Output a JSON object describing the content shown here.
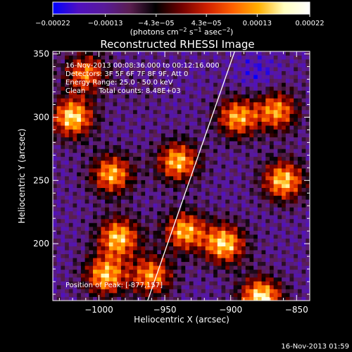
{
  "chart_data": {
    "type": "heatmap",
    "title": "Reconstructed RHESSI Image",
    "xlabel": "Heliocentric X (arcsec)",
    "ylabel": "Heliocentric Y (arcsec)",
    "xlim": [
      -1035,
      -840
    ],
    "ylim": [
      155,
      352
    ],
    "x_ticks": [
      -1000,
      -950,
      -900,
      -850
    ],
    "x_tick_labels": [
      "−1000",
      "−950",
      "−900",
      "−850"
    ],
    "y_ticks": [
      200,
      250,
      300,
      350
    ],
    "y_tick_labels": [
      "200",
      "250",
      "300",
      "350"
    ],
    "colorbar": {
      "range": [
        -0.00022,
        0.00022
      ],
      "ticks": [
        -0.00022,
        -0.00013,
        -4.3e-05,
        4.3e-05,
        0.00013,
        0.00022
      ],
      "tick_labels": [
        "−0.00022",
        "−0.00013",
        "−4.3e−05",
        "4.3e−05",
        "0.00013",
        "0.00022"
      ],
      "unit_prefix": "(photons cm",
      "unit_sup1": "−2",
      "unit_mid": " s",
      "unit_sup2": "−1",
      "unit_mid2": " asec",
      "unit_sup3": "−2",
      "unit_suffix": ")",
      "colors": [
        "#0000ff",
        "#5010c0",
        "#581a9a",
        "#5a1e50",
        "#000000",
        "#700000",
        "#d02000",
        "#ff6000",
        "#ffb000",
        "#ffffc0",
        "#ffffff"
      ]
    },
    "info_lines": [
      "16-Nov-2013 00:08:36.000 to 00:12:16.000",
      "Detectors: 3F 5F 6F 7F 8F 9F, Att 0",
      "Energy Range: 25.0 - 50.0 keV",
      "Clean      Total counts: 8.48E+03"
    ],
    "peak_label": "Position of Peak:",
    "peak_value": "[-877,157]",
    "peak": [
      -877,
      157
    ],
    "limb_line": [
      [
        -963,
        155
      ],
      [
        -897,
        352
      ]
    ],
    "intensity_hotspots": [
      {
        "x": -1020,
        "y": 300,
        "value": 0.0002
      },
      {
        "x": -990,
        "y": 255,
        "value": 0.00016
      },
      {
        "x": -985,
        "y": 205,
        "value": 0.00018
      },
      {
        "x": -995,
        "y": 175,
        "value": 0.00017
      },
      {
        "x": -940,
        "y": 265,
        "value": 0.00017
      },
      {
        "x": -935,
        "y": 210,
        "value": 0.00016
      },
      {
        "x": -905,
        "y": 200,
        "value": 0.00019
      },
      {
        "x": -895,
        "y": 300,
        "value": 0.00015
      },
      {
        "x": -860,
        "y": 250,
        "value": 0.00018
      },
      {
        "x": -865,
        "y": 305,
        "value": 0.00014
      },
      {
        "x": -877,
        "y": 157,
        "value": 0.00022
      },
      {
        "x": -1010,
        "y": 335,
        "value": 0.00012
      },
      {
        "x": -960,
        "y": 175,
        "value": 0.00014
      },
      {
        "x": -930,
        "y": 330,
        "value": -0.00013
      },
      {
        "x": -880,
        "y": 335,
        "value": -0.00018
      },
      {
        "x": -900,
        "y": 250,
        "value": -0.00012
      },
      {
        "x": -970,
        "y": 320,
        "value": -0.0001
      },
      {
        "x": -885,
        "y": 180,
        "value": -0.00011
      }
    ]
  },
  "footer_timestamp": "16-Nov-2013 01:59"
}
